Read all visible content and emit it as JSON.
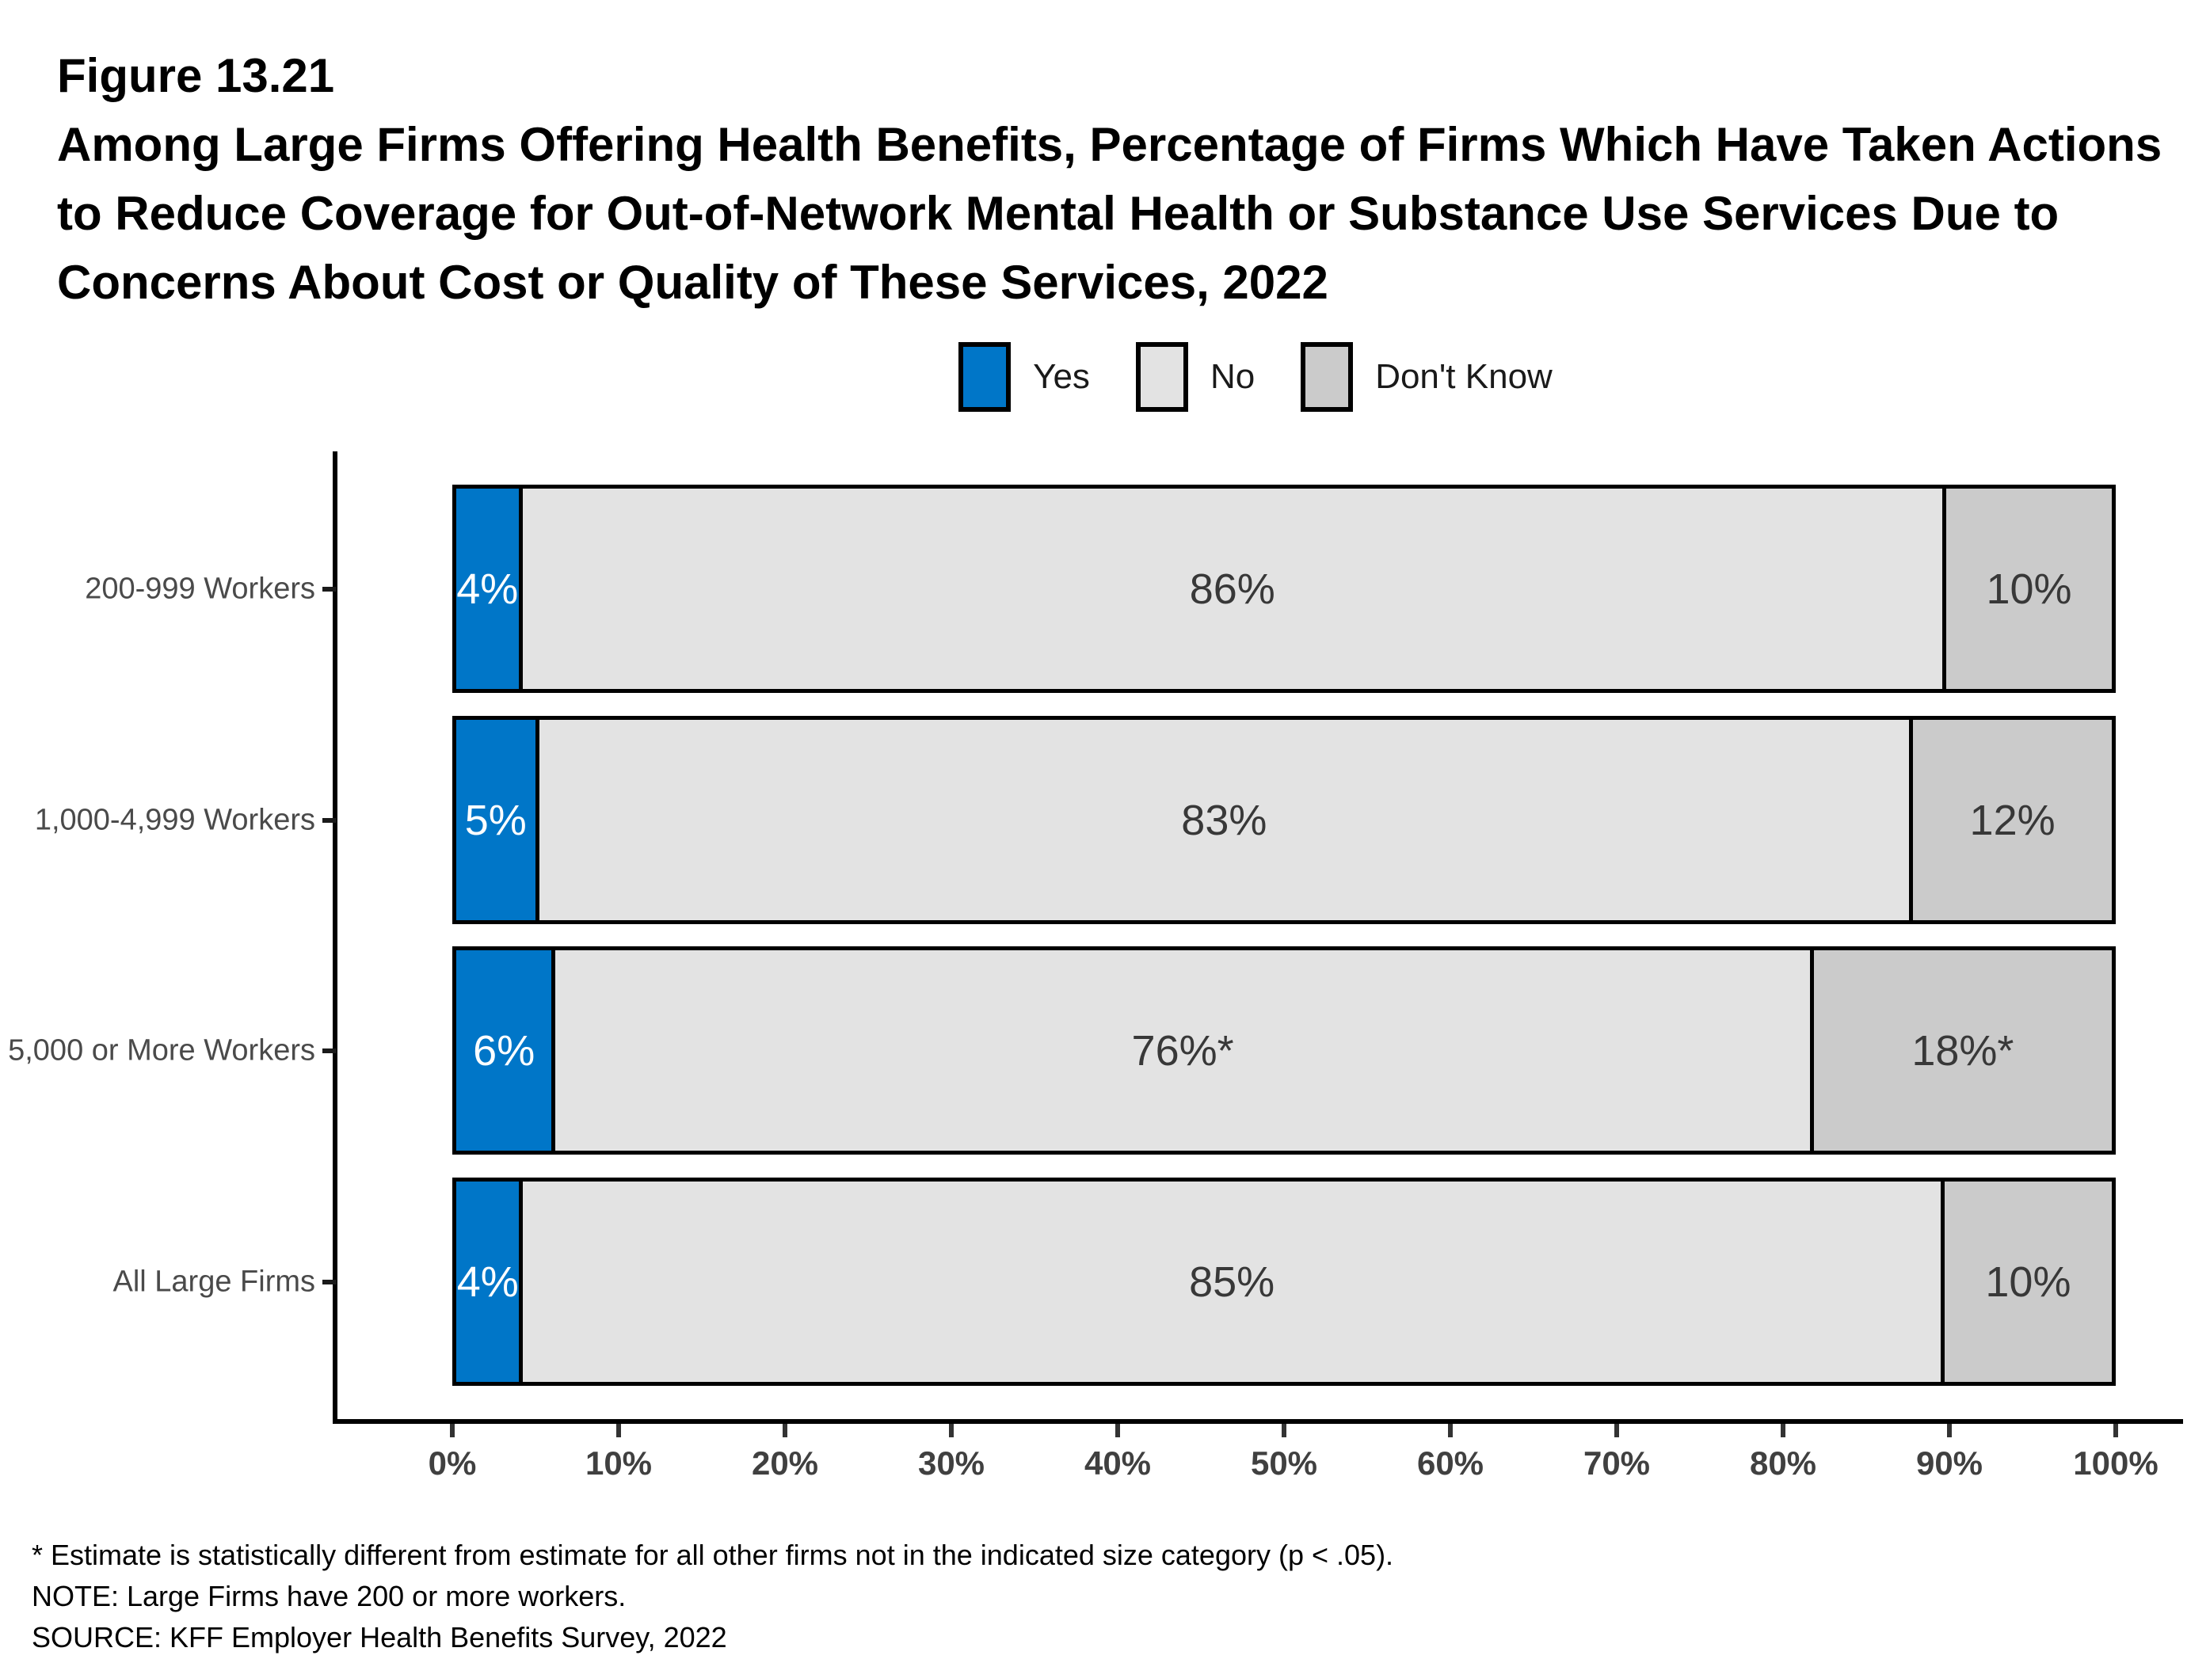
{
  "figure": {
    "number": "Figure 13.21",
    "title_lines": [
      "Among Large Firms Offering Health Benefits, Percentage of Firms Which Have Taken Actions",
      "to Reduce Coverage for Out-of-Network Mental Health or Substance Use Services Due to",
      "Concerns About Cost or Quality of These Services, 2022"
    ]
  },
  "legend": {
    "items": [
      {
        "label": "Yes",
        "color": "#0076C8"
      },
      {
        "label": "No",
        "color": "#E3E3E3"
      },
      {
        "label": "Don't Know",
        "color": "#CBCBCB"
      }
    ]
  },
  "chart_data": {
    "type": "bar",
    "orientation": "horizontal-stacked",
    "title": "Among Large Firms Offering Health Benefits, Percentage of Firms Which Have Taken Actions to Reduce Coverage for Out-of-Network Mental Health or Substance Use Services Due to Concerns About Cost or Quality of These Services, 2022",
    "categories": [
      "200-999 Workers",
      "1,000-4,999 Workers",
      "5,000 or More Workers",
      "All Large Firms"
    ],
    "series": [
      {
        "name": "Yes",
        "color": "#0076C8",
        "label_color": "#FFFFFF",
        "values": [
          4,
          5,
          6,
          4
        ],
        "labels": [
          "4%",
          "5%",
          "6%",
          "4%"
        ]
      },
      {
        "name": "No",
        "color": "#E3E3E3",
        "label_color": "#383838",
        "values": [
          86,
          83,
          76,
          85
        ],
        "labels": [
          "86%",
          "83%",
          "76%*",
          "85%"
        ]
      },
      {
        "name": "Don't Know",
        "color": "#CBCBCB",
        "label_color": "#383838",
        "values": [
          10,
          12,
          18,
          10
        ],
        "labels": [
          "10%",
          "12%",
          "18%*",
          "10%"
        ]
      }
    ],
    "x_axis": {
      "tick_labels": [
        "0%",
        "10%",
        "20%",
        "30%",
        "40%",
        "50%",
        "60%",
        "70%",
        "80%",
        "90%",
        "100%"
      ],
      "range": [
        0,
        100
      ],
      "grid": false
    },
    "legend_position": "top-center"
  },
  "footnotes": {
    "asterisk": "* Estimate is statistically different from estimate for all other firms not in the indicated size category (p < .05).",
    "note": "NOTE: Large Firms have 200 or more workers.",
    "source": "SOURCE: KFF Employer Health Benefits Survey, 2022"
  }
}
